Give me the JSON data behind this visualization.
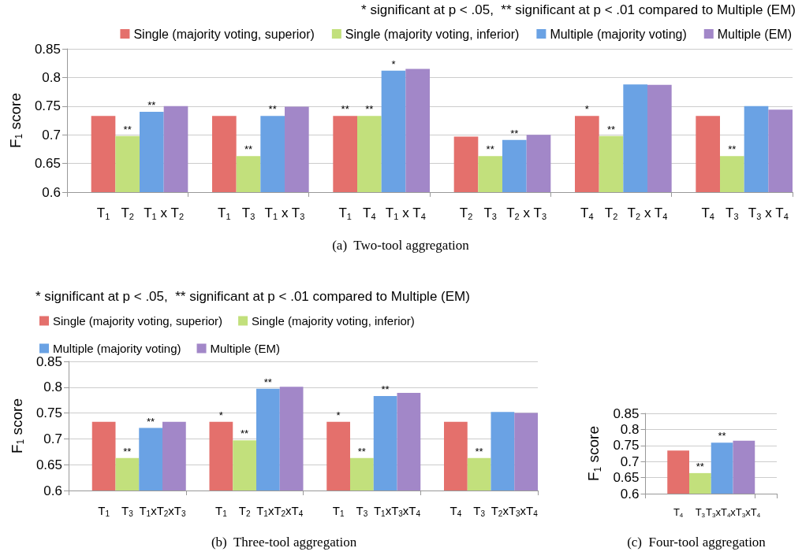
{
  "chart_data": [
    {
      "type": "bar",
      "ylabel": "F$_{1}$ score",
      "ylim": [
        0.6,
        0.85
      ],
      "yticks": [
        0.6,
        0.65,
        0.7,
        0.75,
        0.8,
        0.85
      ],
      "grid": "y",
      "legend": "top right",
      "annotations": [
        "* significant at p < .05,  ** significant at p < .01 compared to Multiple (EM)",
        "(a)  Two-tool aggregation"
      ],
      "categories": [
        null,
        "T$_{1}$",
        "T$_{2}$",
        "T$_{1}$ x T$_{2}$",
        null,
        null,
        "T$_{1}$",
        "T$_{3}$",
        "T$_{1}$ x T$_{3}$",
        null,
        null,
        "T$_{1}$",
        "T$_{4}$",
        "T$_{1}$ x T$_{4}$",
        null,
        null,
        "T$_{2}$",
        "T$_{3}$",
        "T$_{2}$ x T$_{3}$",
        null,
        null,
        "T$_{4}$",
        "T$_{2}$",
        "T$_{2}$ x T$_{4}$",
        null,
        null,
        "T$_{4}$",
        "T$_{3}$",
        "T$_{3}$ x T$_{4}$",
        null
      ],
      "series": [
        {
          "name": "Single (majority voting, superior)",
          "color": "#e4706c",
          "values": [
            null,
            0.733,
            null,
            null,
            null,
            null,
            0.733,
            null,
            null,
            null,
            null,
            0.733,
            null,
            null,
            null,
            null,
            0.697,
            null,
            null,
            null,
            null,
            0.733,
            null,
            null,
            null,
            null,
            0.733,
            null,
            null,
            null
          ],
          "value_labels": [
            null,
            null,
            null,
            null,
            null,
            null,
            null,
            null,
            null,
            null,
            null,
            "**",
            null,
            null,
            null,
            null,
            null,
            null,
            null,
            null,
            null,
            "*",
            null,
            null,
            null,
            null,
            null,
            null,
            null,
            null
          ]
        },
        {
          "name": "Single (majority voting, inferior)",
          "color": "#c2e07c",
          "values": [
            null,
            null,
            0.698,
            null,
            null,
            null,
            null,
            0.663,
            null,
            null,
            null,
            null,
            0.733,
            null,
            null,
            null,
            null,
            0.663,
            null,
            null,
            null,
            null,
            0.698,
            null,
            null,
            null,
            null,
            0.663,
            null,
            null
          ],
          "value_labels": [
            null,
            null,
            "**",
            null,
            null,
            null,
            null,
            "**",
            null,
            null,
            null,
            null,
            "**",
            null,
            null,
            null,
            null,
            "**",
            null,
            null,
            null,
            null,
            "**",
            null,
            null,
            null,
            null,
            "**",
            null,
            null
          ]
        },
        {
          "name": "Multiple (majority voting)",
          "color": "#6aa2e4",
          "values": [
            null,
            null,
            null,
            0.74,
            null,
            null,
            null,
            null,
            0.733,
            null,
            null,
            null,
            null,
            0.812,
            null,
            null,
            null,
            null,
            0.691,
            null,
            null,
            null,
            null,
            0.788,
            null,
            null,
            null,
            null,
            0.75,
            null
          ],
          "value_labels": [
            null,
            null,
            null,
            "**",
            null,
            null,
            null,
            null,
            "**",
            null,
            null,
            null,
            null,
            "*",
            null,
            null,
            null,
            null,
            "**",
            null,
            null,
            null,
            null,
            null,
            null,
            null,
            null,
            null,
            null,
            null
          ]
        },
        {
          "name": "Multiple (EM)",
          "color": "#a287c8",
          "values": [
            null,
            null,
            null,
            null,
            0.75,
            null,
            null,
            null,
            null,
            0.749,
            null,
            null,
            null,
            null,
            0.815,
            null,
            null,
            null,
            null,
            0.7,
            null,
            null,
            null,
            null,
            0.787,
            null,
            null,
            null,
            null,
            0.744
          ]
        }
      ]
    },
    {
      "type": "bar",
      "ylabel": "F$_{1}$ score",
      "ylim": [
        0.6,
        0.85
      ],
      "yticks": [
        0.6,
        0.65,
        0.7,
        0.75,
        0.8,
        0.85
      ],
      "grid": "y",
      "legend": "top left",
      "annotations": [
        "* significant at p < .05,  ** significant at p < .01 compared to Multiple (EM)",
        "(b)  Three-tool aggregation"
      ],
      "categories": [
        null,
        "T$_{1}$",
        "T$_{3}$",
        "T$_{1}$xT$_{2}$xT$_{3}$",
        null,
        null,
        "T$_{1}$",
        "T$_{2}$",
        "T$_{1}$xT$_{2}$xT$_{4}$",
        null,
        null,
        "T$_{1}$",
        "T$_{3}$",
        "T$_{1}$xT$_{3}$xT$_{4}$",
        null,
        null,
        "T$_{4}$",
        "T$_{3}$",
        "T$_{2}$xT$_{3}$xT$_{4}$",
        null
      ],
      "series": [
        {
          "name": "Single (majority voting, superior)",
          "color": "#e4706c",
          "values": [
            null,
            0.733,
            null,
            null,
            null,
            null,
            0.733,
            null,
            null,
            null,
            null,
            0.733,
            null,
            null,
            null,
            null,
            0.733,
            null,
            null,
            null
          ],
          "value_labels": [
            null,
            null,
            null,
            null,
            null,
            null,
            "*",
            null,
            null,
            null,
            null,
            "*",
            null,
            null,
            null,
            null,
            null,
            null,
            null,
            null
          ]
        },
        {
          "name": "Single (majority voting, inferior)",
          "color": "#c2e07c",
          "values": [
            null,
            null,
            0.663,
            null,
            null,
            null,
            null,
            0.697,
            null,
            null,
            null,
            null,
            0.663,
            null,
            null,
            null,
            null,
            0.663,
            null,
            null
          ],
          "value_labels": [
            null,
            null,
            "**",
            null,
            null,
            null,
            null,
            "**",
            null,
            null,
            null,
            null,
            "**",
            null,
            null,
            null,
            null,
            "**",
            null,
            null
          ]
        },
        {
          "name": "Multiple (majority voting)",
          "color": "#6aa2e4",
          "values": [
            null,
            null,
            null,
            0.721,
            null,
            null,
            null,
            null,
            0.797,
            null,
            null,
            null,
            null,
            0.783,
            null,
            null,
            null,
            null,
            0.752,
            null
          ],
          "value_labels": [
            null,
            null,
            null,
            "**",
            null,
            null,
            null,
            null,
            "**",
            null,
            null,
            null,
            null,
            "**",
            null,
            null,
            null,
            null,
            null,
            null
          ]
        },
        {
          "name": "Multiple (EM)",
          "color": "#a287c8",
          "values": [
            null,
            null,
            null,
            null,
            0.733,
            null,
            null,
            null,
            null,
            0.801,
            null,
            null,
            null,
            null,
            0.789,
            null,
            null,
            null,
            null,
            0.75
          ]
        }
      ]
    },
    {
      "type": "bar",
      "ylabel": "F$_{1}$ score",
      "ylim": [
        0.6,
        0.85
      ],
      "yticks": [
        0.6,
        0.65,
        0.7,
        0.75,
        0.8,
        0.85
      ],
      "grid": "y",
      "annotations": [
        "(c)  Four-tool aggregation"
      ],
      "categories": [
        null,
        "T$_{4}$",
        "T$_{3}$",
        "T$_{3}$xT$_{4}$xT$_{3}$xT$_{4}$",
        null,
        null
      ],
      "series": [
        {
          "color": "#e4706c",
          "values": [
            null,
            0.734,
            null,
            null,
            null,
            null
          ]
        },
        {
          "color": "#c2e07c",
          "values": [
            null,
            null,
            0.664,
            null,
            null,
            null
          ],
          "value_labels": [
            null,
            null,
            "**",
            null,
            null,
            null
          ]
        },
        {
          "color": "#6aa2e4",
          "values": [
            null,
            null,
            null,
            0.759,
            null,
            null
          ],
          "value_labels": [
            null,
            null,
            null,
            "**",
            null,
            null
          ]
        },
        {
          "color": "#a287c8",
          "values": [
            null,
            null,
            null,
            null,
            0.765,
            null
          ]
        }
      ]
    }
  ]
}
